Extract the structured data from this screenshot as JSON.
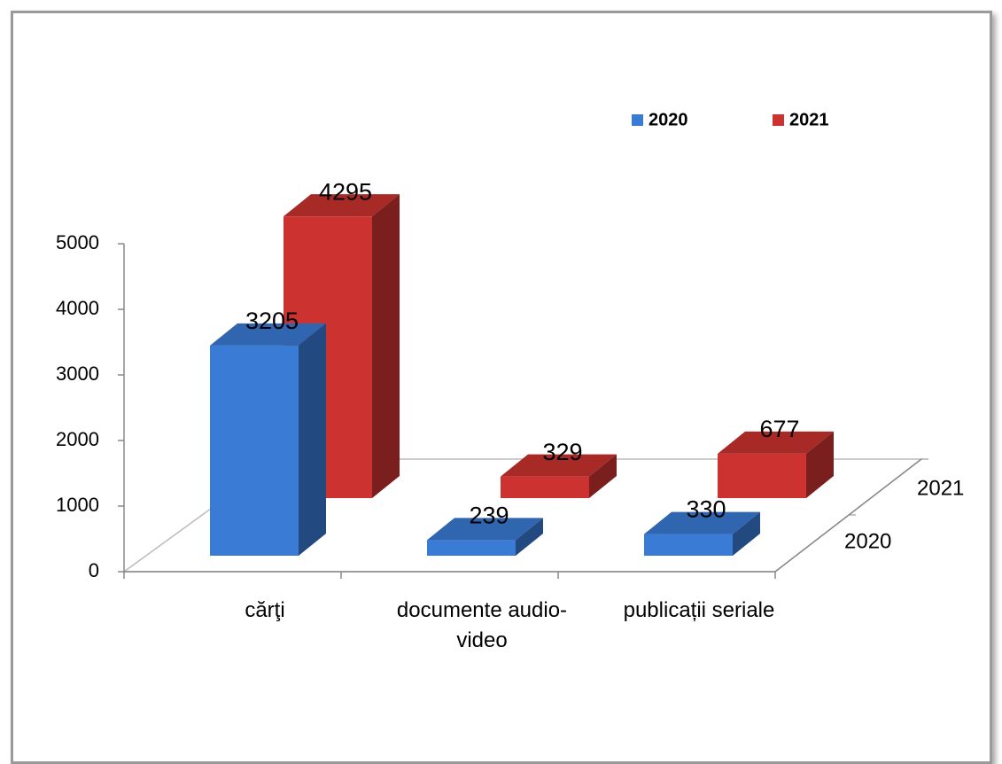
{
  "chart_data": {
    "type": "bar3d",
    "categories": [
      "cărţi",
      "documente audio-video",
      "publicații seriale"
    ],
    "series": [
      {
        "name": "2020",
        "color": "#3a7bd5",
        "values": [
          3205,
          239,
          330
        ]
      },
      {
        "name": "2021",
        "color": "#cc3330",
        "values": [
          4295,
          329,
          677
        ]
      }
    ],
    "ylim": [
      0,
      5000
    ],
    "yticks": [
      0,
      1000,
      2000,
      3000,
      4000,
      5000
    ],
    "legend": "top-right"
  }
}
